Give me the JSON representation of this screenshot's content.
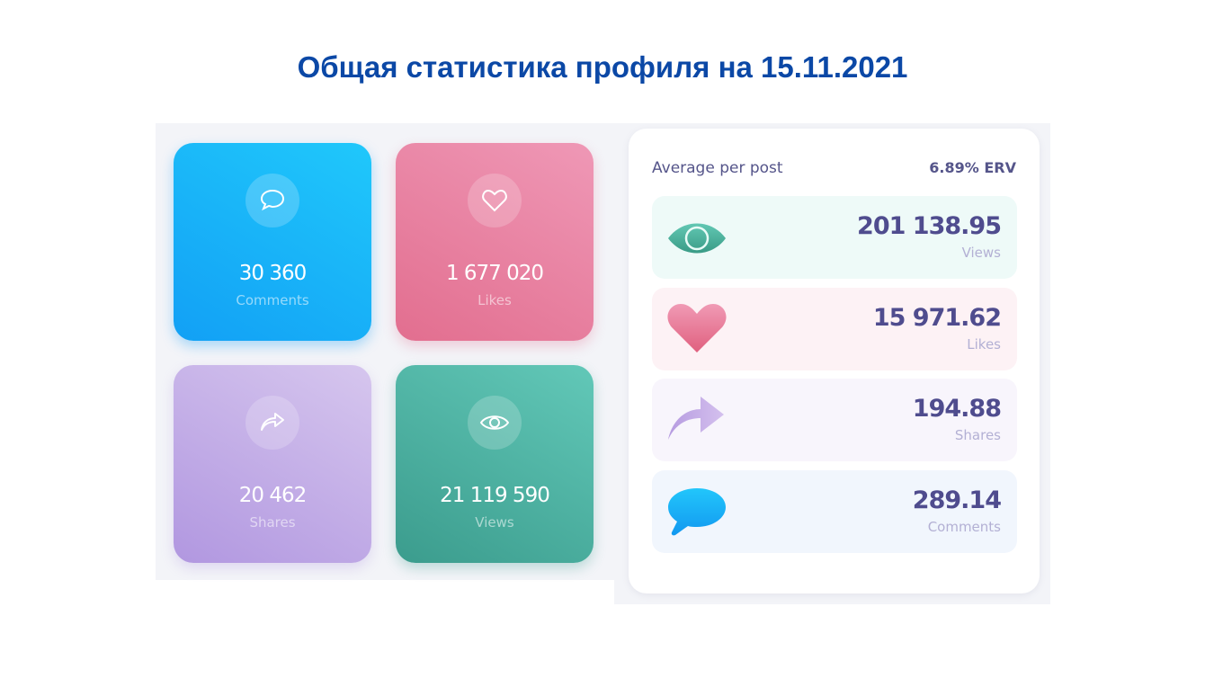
{
  "title": "Общая статистика профиля на 15.11.2021",
  "totals": [
    {
      "value": "30 360",
      "label": "Comments",
      "icon": "comment-icon"
    },
    {
      "value": "1 677 020",
      "label": "Likes",
      "icon": "heart-icon"
    },
    {
      "value": "20 462",
      "label": "Shares",
      "icon": "share-icon"
    },
    {
      "value": "21 119 590",
      "label": "Views",
      "icon": "eye-icon"
    }
  ],
  "average": {
    "title": "Average per post",
    "erv": "6.89% ERV",
    "rows": [
      {
        "value": "201 138.95",
        "label": "Views",
        "icon": "eye-icon",
        "bg": "#eefaf8"
      },
      {
        "value": "15 971.62",
        "label": "Likes",
        "icon": "heart-icon",
        "bg": "#fdf2f5"
      },
      {
        "value": "194.88",
        "label": "Shares",
        "icon": "share-icon",
        "bg": "#f8f5fc"
      },
      {
        "value": "289.14",
        "label": "Comments",
        "icon": "comment-icon",
        "bg": "#f1f6fd"
      }
    ]
  }
}
